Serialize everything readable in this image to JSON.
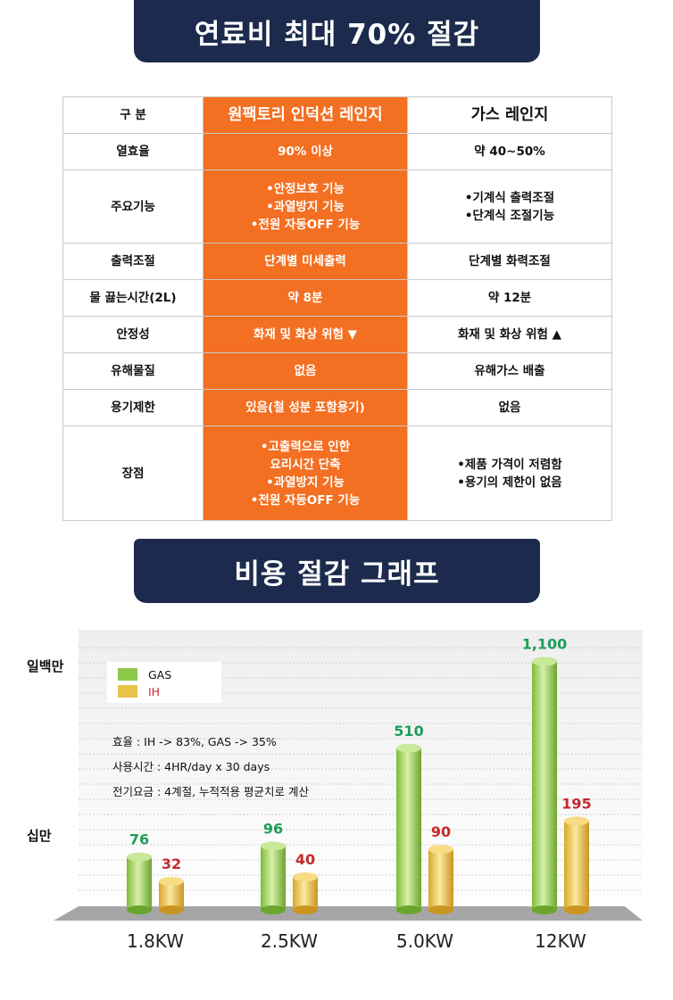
{
  "header": {
    "title": "연료비 최대 70% 절감"
  },
  "table": {
    "columns": [
      "구 분",
      "원팩토리 인덕션 레인지",
      "가스 레인지"
    ],
    "rows": [
      {
        "label": "열효율",
        "ih": [
          "90% 이상"
        ],
        "gas": [
          "약 40~50%"
        ]
      },
      {
        "label": "주요기능",
        "ih": [
          "•안정보호 기능",
          "•과열방지 기능",
          "•전원 자동OFF 기능"
        ],
        "gas": [
          "•기계식 출력조절",
          "•단계식 조절기능"
        ]
      },
      {
        "label": "출력조절",
        "ih": [
          "단계별 미세출력"
        ],
        "gas": [
          "단계별 화력조절"
        ]
      },
      {
        "label": "물 끓는시간(2L)",
        "ih": [
          "약 8분"
        ],
        "gas": [
          "약 12분"
        ]
      },
      {
        "label": "안정성",
        "ih": [
          "화재 및 화상 위험 ▼"
        ],
        "gas": [
          "화재 및 화상 위험 ▲"
        ]
      },
      {
        "label": "유해물질",
        "ih": [
          "없음"
        ],
        "gas": [
          "유해가스 배출"
        ]
      },
      {
        "label": "용기제한",
        "ih": [
          "있음(철 성분 포함용기)"
        ],
        "gas": [
          "없음"
        ]
      },
      {
        "label": "장점",
        "ih": [
          "•고출력으로 인한",
          "요리시간 단축",
          "•과열방지 기능",
          "•전원 자동OFF 기능"
        ],
        "gas": [
          "•제품 가격이 저렴함",
          "•용기의 제한이 없음"
        ]
      }
    ]
  },
  "graph_section": {
    "title": "비용 절감 그래프"
  },
  "chart_data": {
    "type": "bar",
    "categories": [
      "1.8KW",
      "2.5KW",
      "5.0KW",
      "12KW"
    ],
    "series": [
      {
        "name": "GAS",
        "values": [
          76,
          96,
          510,
          1100
        ],
        "color": "#8cc84b",
        "label_color": "#1e9e5a"
      },
      {
        "name": "IH",
        "values": [
          32,
          40,
          90,
          195
        ],
        "color": "#e8c24a",
        "label_color": "#c8282d"
      }
    ],
    "value_labels": {
      "GAS": [
        "76",
        "96",
        "510",
        "1,100"
      ],
      "IH": [
        "32",
        "40",
        "90",
        "195"
      ]
    },
    "y_tick_labels": [
      "일백만",
      "십만"
    ],
    "notes": [
      "효율 : IH -> 83%, GAS -> 35%",
      "사용시간 : 4HR/day x 30 days",
      "전기요금 : 4계절, 누적적용 평균치로 계산"
    ],
    "legend_position": "top-left",
    "grid": true
  }
}
